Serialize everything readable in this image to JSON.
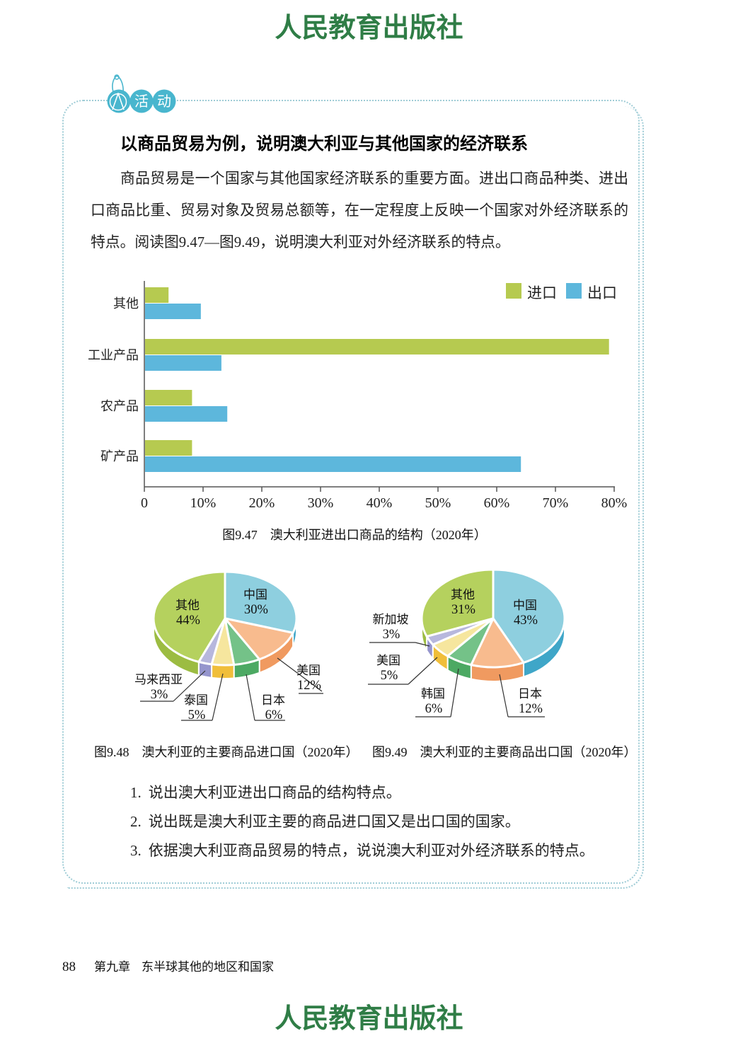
{
  "press_name": "人民教育出版社",
  "activity_badge": {
    "icon": "compass-icon",
    "chars": [
      "活",
      "动"
    ]
  },
  "title": "以商品贸易为例，说明澳大利亚与其他国家的经济联系",
  "intro": "商品贸易是一个国家与其他国家经济联系的重要方面。进出口商品种类、进出口商品比重、贸易对象及贸易总额等，在一定程度上反映一个国家对外经济联系的特点。阅读图9.47—图9.49，说明澳大利亚对外经济联系的特点。",
  "chart_data": [
    {
      "id": "trade-structure",
      "type": "bar",
      "orientation": "horizontal",
      "title": "图9.47　澳大利亚进出口商品的结构（2020年）",
      "categories": [
        "其他",
        "工业产品",
        "农产品",
        "矿产品"
      ],
      "series": [
        {
          "name": "进口",
          "color": "#b6ca50",
          "values": [
            4,
            79,
            8,
            8
          ]
        },
        {
          "name": "出口",
          "color": "#5db7dc",
          "values": [
            9.5,
            13,
            14,
            64
          ]
        }
      ],
      "xlim": [
        0,
        80
      ],
      "xticks": [
        "0",
        "10%",
        "20%",
        "30%",
        "40%",
        "50%",
        "60%",
        "70%",
        "80%"
      ],
      "legend_position": "top-right"
    },
    {
      "id": "import-partners",
      "type": "pie",
      "style": "3d",
      "title": "图9.48　澳大利亚的主要商品进口国（2020年）",
      "slices": [
        {
          "label": "中国",
          "value": 30
        },
        {
          "label": "美国",
          "value": 12
        },
        {
          "label": "日本",
          "value": 6
        },
        {
          "label": "泰国",
          "value": 5
        },
        {
          "label": "马来西亚",
          "value": 3
        },
        {
          "label": "其他",
          "value": 44
        }
      ]
    },
    {
      "id": "export-partners",
      "type": "pie",
      "style": "3d",
      "title": "图9.49　澳大利亚的主要商品出口国（2020年）",
      "slices": [
        {
          "label": "中国",
          "value": 43
        },
        {
          "label": "日本",
          "value": 12
        },
        {
          "label": "韩国",
          "value": 6
        },
        {
          "label": "美国",
          "value": 5
        },
        {
          "label": "新加坡",
          "value": 3
        },
        {
          "label": "其他",
          "value": 31
        }
      ]
    }
  ],
  "palette": {
    "pie_top": [
      "#8ecfdf",
      "#f8bb8e",
      "#74c288",
      "#f6e69e",
      "#b7b7dd",
      "#b5d15e"
    ],
    "pie_side": [
      "#3fa6c8",
      "#f09a60",
      "#4ca963",
      "#f0be3a",
      "#9595cd",
      "#9cbc42"
    ],
    "import_color": "#b6ca50",
    "export_color": "#5db7dc",
    "border": "#9fccd6",
    "badge": "#49b6ce",
    "calligraphy": "#2f7d46"
  },
  "questions": [
    {
      "num": "1.",
      "text": "说出澳大利亚进出口商品的结构特点。"
    },
    {
      "num": "2.",
      "text": "说出既是澳大利亚主要的商品进口国又是出口国的国家。"
    },
    {
      "num": "3.",
      "text": "依据澳大利亚商品贸易的特点，说说澳大利亚对外经济联系的特点。"
    }
  ],
  "footer": {
    "page_number": "88",
    "chapter": "第九章",
    "chapter_title": "东半球其他的地区和国家"
  }
}
